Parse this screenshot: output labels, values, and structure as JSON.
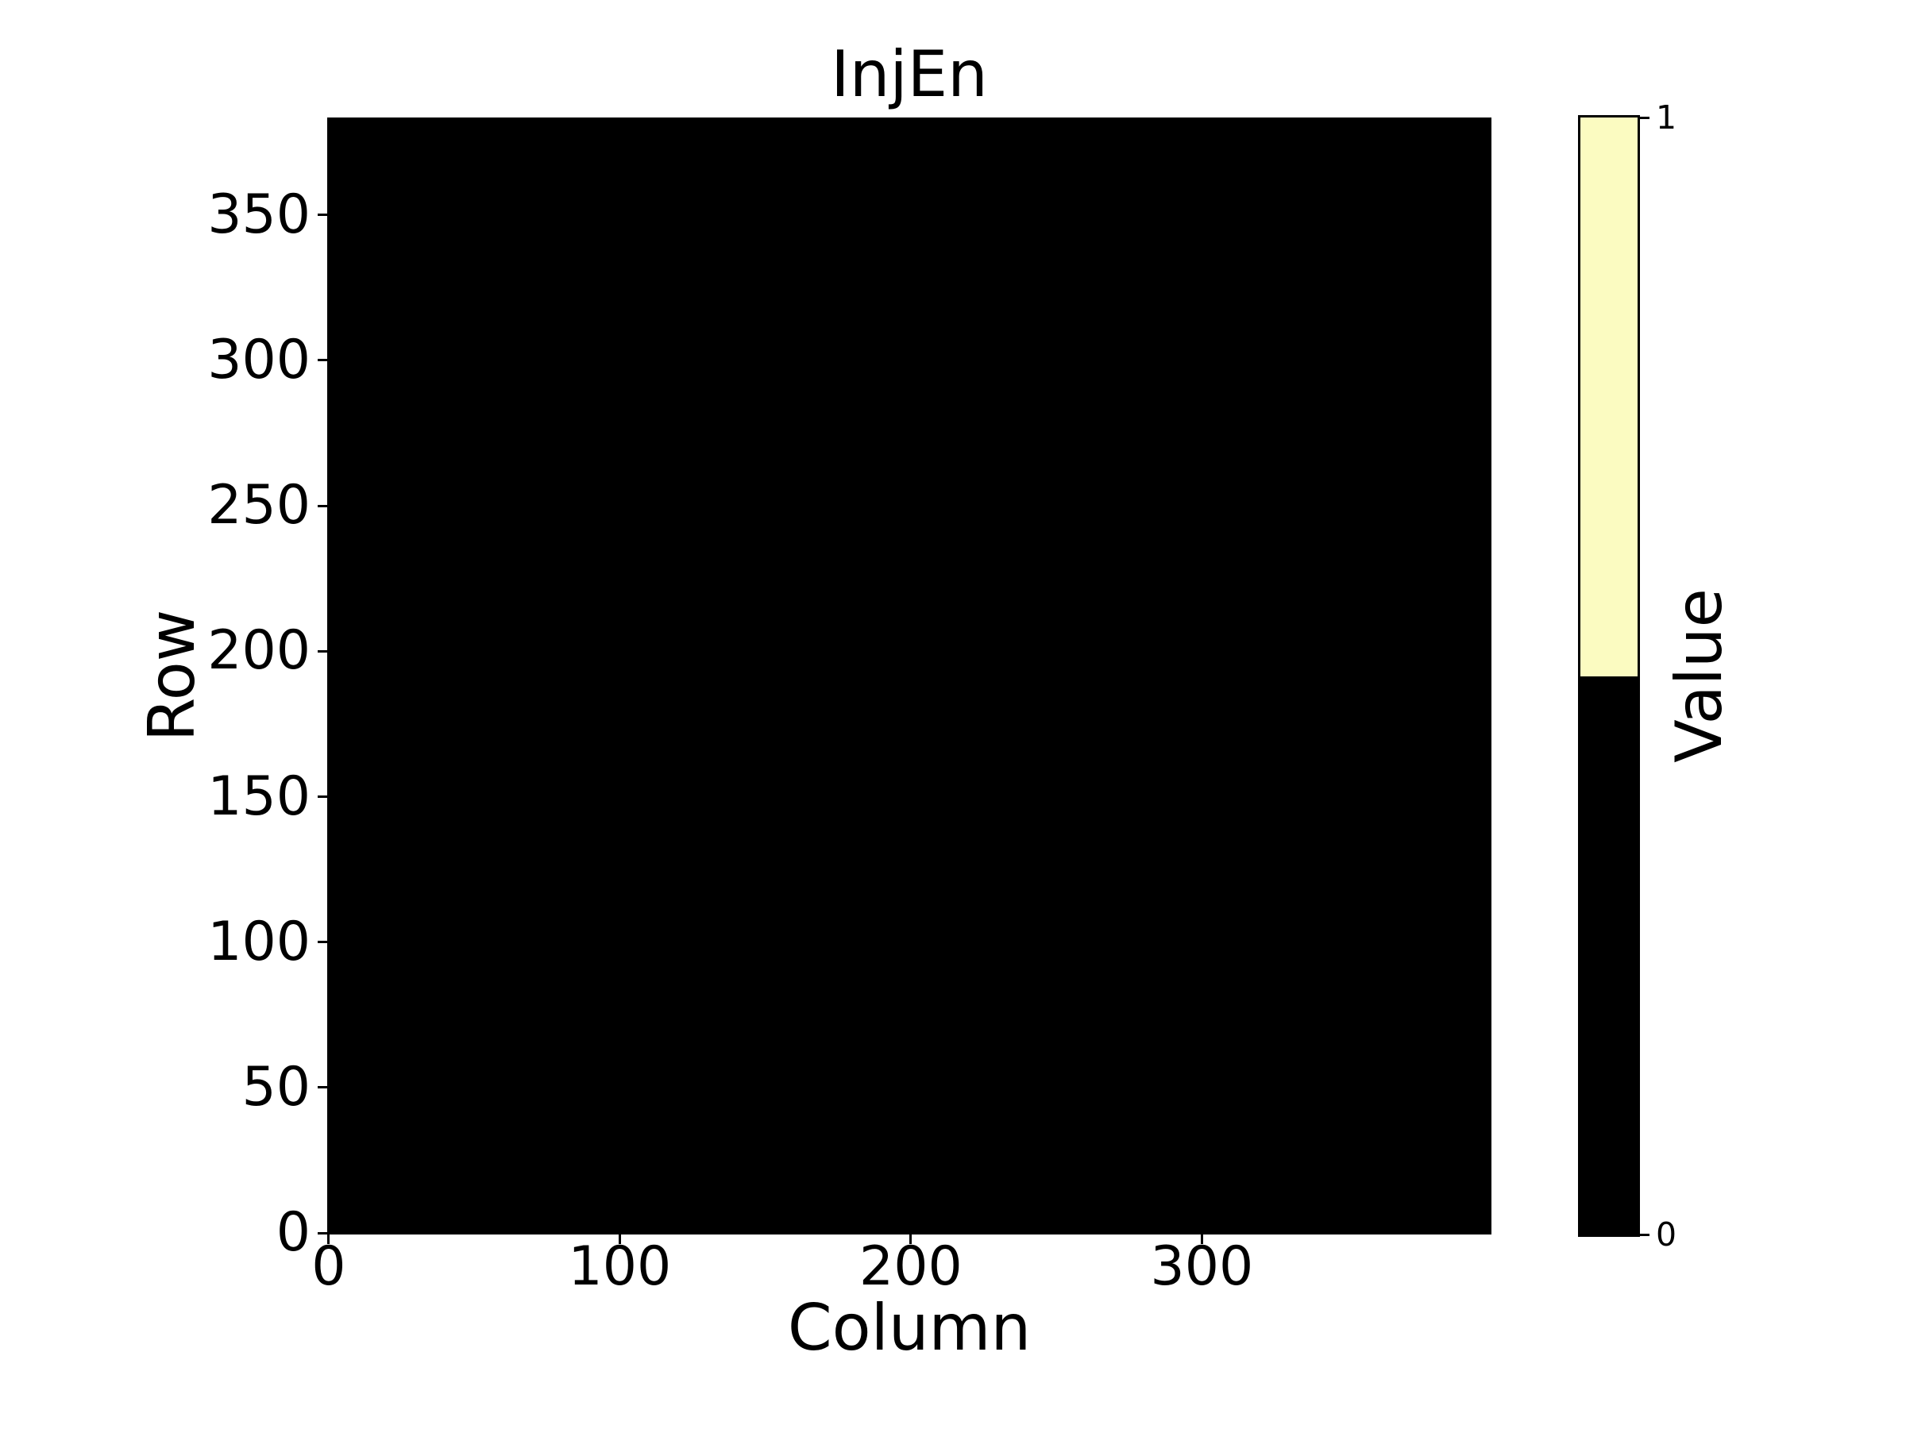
{
  "chart_data": {
    "type": "heatmap",
    "title": "InjEn",
    "xlabel": "Column",
    "ylabel": "Row",
    "matrix": {
      "n_rows": 384,
      "n_cols": 400,
      "uniform_value": 0,
      "description": "Every pixel of the 384-row by 400-column map has value 0, so the whole heatmap area renders as solid black."
    },
    "x_ticks": [
      0,
      100,
      200,
      300
    ],
    "y_ticks": [
      0,
      50,
      100,
      150,
      200,
      250,
      300,
      350
    ],
    "xlim": [
      -0.5,
      399.5
    ],
    "ylim": [
      -0.5,
      383.5
    ],
    "value_range": [
      0,
      1
    ],
    "grid": false,
    "background_color": "#ffffff",
    "colormap": [
      {
        "value": 0,
        "color": "#000000"
      },
      {
        "value": 1,
        "color": "#FBFBC1"
      }
    ],
    "colorbar": {
      "label": "Value",
      "ticks": [
        0,
        1
      ],
      "position": "right"
    }
  }
}
